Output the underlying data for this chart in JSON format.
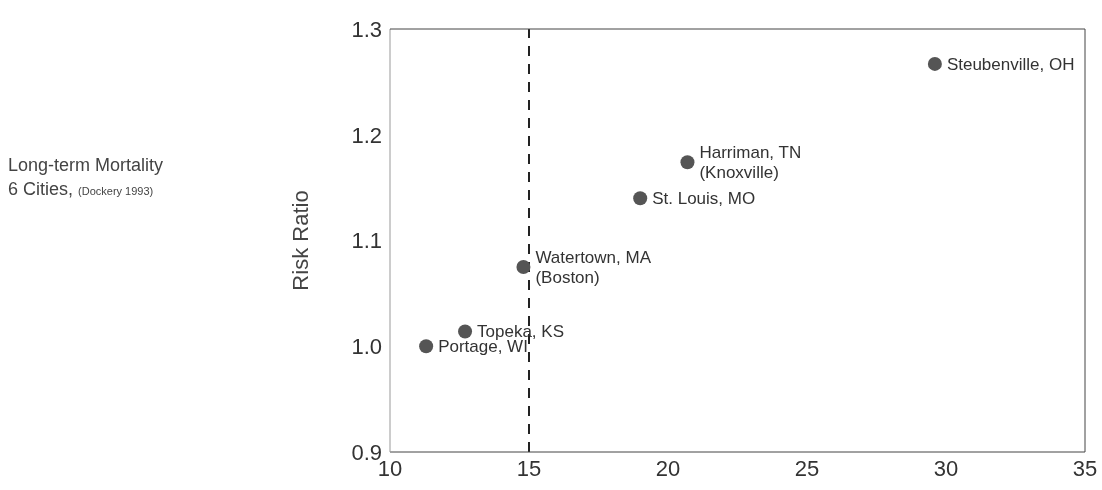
{
  "chart_data": {
    "type": "scatter",
    "title": "Long-term Mortality",
    "subtitle": "6 Cities,",
    "ylabel": "Risk Ratio",
    "annotations": [
      "(Dockery 1993)",
      {
        "text": "Portage, WI",
        "x": 11.3,
        "y": 1.0
      },
      {
        "text": "Topeka, KS",
        "x": 12.7,
        "y": 1.014
      },
      {
        "text": "Watertown, MA\n(Boston)",
        "x": 14.8,
        "y": 1.075
      },
      {
        "text": "St. Louis, MO",
        "x": 19.0,
        "y": 1.14
      },
      {
        "text": "Harriman, TN\n(Knoxville)",
        "x": 20.7,
        "y": 1.174
      },
      {
        "text": "Steubenville, OH",
        "x": 29.6,
        "y": 1.267
      }
    ],
    "x": [
      11.3,
      12.7,
      14.8,
      19.0,
      20.7,
      29.6
    ],
    "values": [
      1.0,
      1.014,
      1.075,
      1.14,
      1.174,
      1.267
    ],
    "color": "#555555",
    "marker": "circle",
    "xlim": [
      10,
      35
    ],
    "xticks": [
      10,
      15,
      20,
      25,
      30,
      35
    ],
    "ylim": [
      0.9,
      1.3
    ],
    "yticks": [
      0.9,
      {
        "value": 1,
        "label": "1.0"
      },
      1.1,
      1.2,
      1.3
    ],
    "grid": false,
    "ref_lines": [
      {
        "axis": "x",
        "value": 15,
        "line_style": "dashed",
        "color": "#222222"
      }
    ]
  }
}
